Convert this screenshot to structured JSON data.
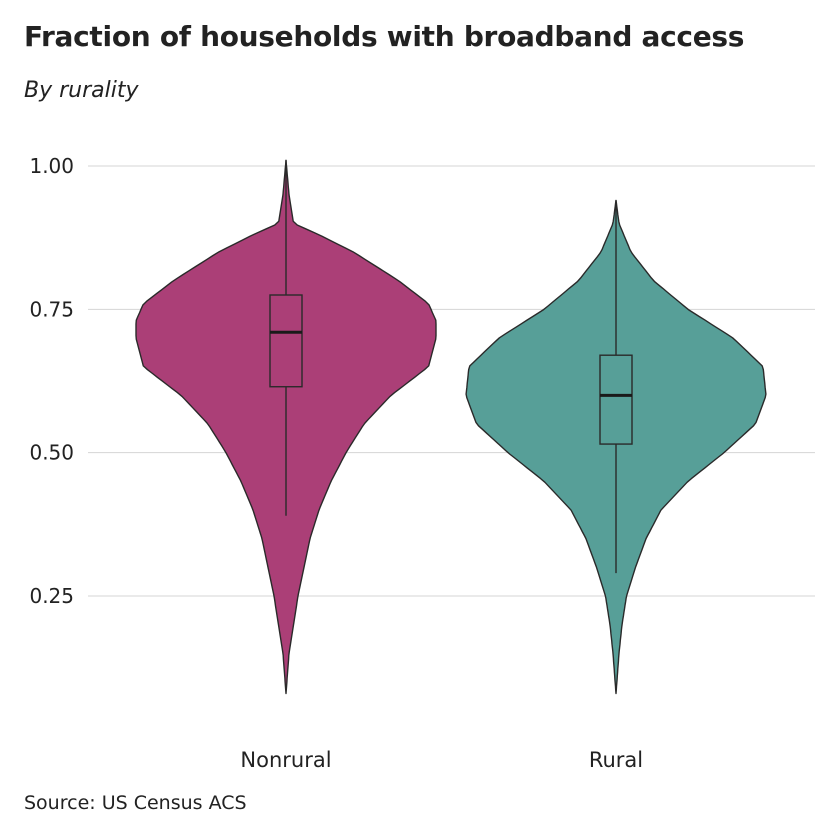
{
  "title": "Fraction of households with broadband access",
  "subtitle": "By rurality",
  "source": "Source: US Census ACS",
  "chart_data": {
    "type": "violin",
    "categories": [
      "Nonrural",
      "Rural"
    ],
    "ylim": [
      0.05,
      1.05
    ],
    "yticks": [
      0.25,
      0.5,
      0.75,
      1.0
    ],
    "ytick_labels": [
      "0.25",
      "0.50",
      "0.75",
      "1.00"
    ],
    "grid": true,
    "series": [
      {
        "name": "Nonrural",
        "color": "#AB3F77",
        "min": 0.08,
        "max": 1.01,
        "whisker_low": 0.39,
        "whisker_high": 1.01,
        "q1": 0.615,
        "median": 0.71,
        "q3": 0.775,
        "density": [
          [
            0.08,
            0.0
          ],
          [
            0.15,
            0.02
          ],
          [
            0.2,
            0.05
          ],
          [
            0.25,
            0.08
          ],
          [
            0.3,
            0.12
          ],
          [
            0.35,
            0.16
          ],
          [
            0.4,
            0.22
          ],
          [
            0.45,
            0.3
          ],
          [
            0.5,
            0.4
          ],
          [
            0.55,
            0.52
          ],
          [
            0.6,
            0.7
          ],
          [
            0.65,
            0.95
          ],
          [
            0.7,
            1.0
          ],
          [
            0.73,
            1.0
          ],
          [
            0.76,
            0.95
          ],
          [
            0.8,
            0.75
          ],
          [
            0.85,
            0.45
          ],
          [
            0.88,
            0.22
          ],
          [
            0.9,
            0.05
          ],
          [
            0.95,
            0.02
          ],
          [
            1.01,
            0.0
          ]
        ]
      },
      {
        "name": "Rural",
        "color": "#579F98",
        "min": 0.08,
        "max": 0.94,
        "whisker_low": 0.29,
        "whisker_high": 0.94,
        "q1": 0.515,
        "median": 0.6,
        "q3": 0.67,
        "density": [
          [
            0.08,
            0.0
          ],
          [
            0.15,
            0.02
          ],
          [
            0.2,
            0.04
          ],
          [
            0.25,
            0.07
          ],
          [
            0.3,
            0.13
          ],
          [
            0.35,
            0.2
          ],
          [
            0.4,
            0.3
          ],
          [
            0.45,
            0.48
          ],
          [
            0.5,
            0.72
          ],
          [
            0.55,
            0.93
          ],
          [
            0.6,
            1.0
          ],
          [
            0.65,
            0.98
          ],
          [
            0.7,
            0.78
          ],
          [
            0.75,
            0.48
          ],
          [
            0.8,
            0.25
          ],
          [
            0.85,
            0.1
          ],
          [
            0.9,
            0.02
          ],
          [
            0.94,
            0.0
          ]
        ]
      }
    ]
  }
}
